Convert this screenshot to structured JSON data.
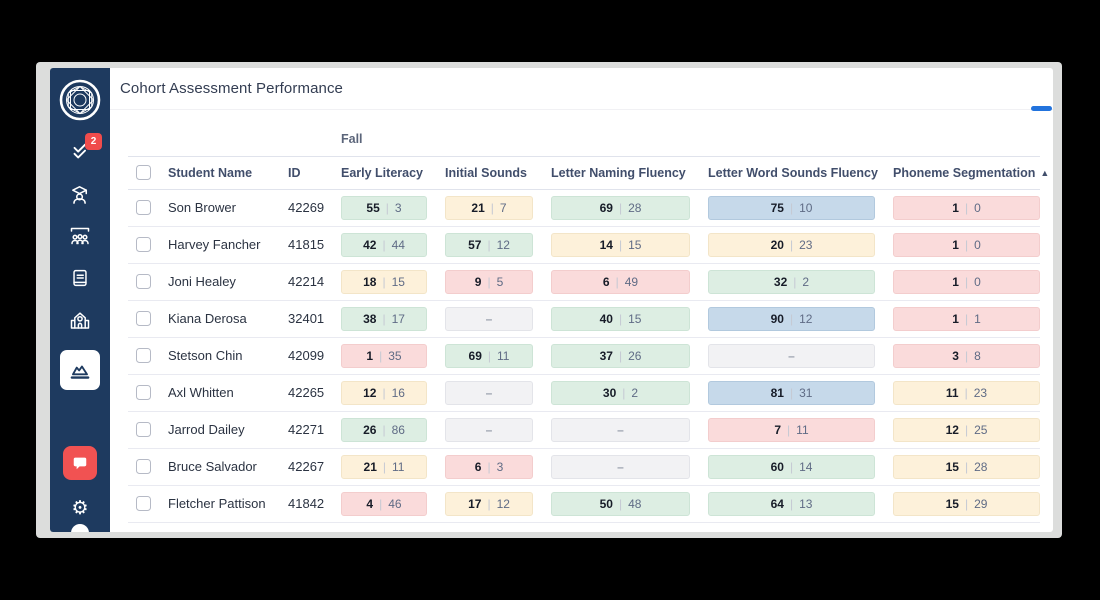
{
  "window": {
    "title": "Cohort Assessment Performance"
  },
  "sidebar": {
    "badge_count": "2",
    "nav": [
      {
        "label": "tasks",
        "icon": "double-check-icon"
      },
      {
        "label": "students",
        "icon": "graduate-icon"
      },
      {
        "label": "groups",
        "icon": "group-icon"
      },
      {
        "label": "curriculum",
        "icon": "book-icon"
      },
      {
        "label": "school",
        "icon": "school-icon"
      },
      {
        "label": "analytics",
        "icon": "area-chart-icon",
        "active": true
      }
    ]
  },
  "colors": {
    "sidebar_navy": "#1e3a5f",
    "accent_blue": "#2273dd",
    "alert_red": "#f04c4c",
    "score_green": "#ddeee3",
    "score_yellow": "#fdf1da",
    "score_pink": "#fadbdb",
    "score_blue": "#c6d9ea",
    "score_gray": "#f2f2f4"
  },
  "table": {
    "season_label": "Fall",
    "columns": [
      "Student Name",
      "ID",
      "Early Literacy",
      "Initial Sounds",
      "Letter Naming Fluency",
      "Letter Word Sounds Fluency",
      "Phoneme Segmentation"
    ],
    "sort": {
      "column": "Phoneme Segmentation",
      "direction": "asc",
      "arrow_up": "▲"
    },
    "value_divider": "|",
    "empty_placeholder": "–",
    "rows": [
      {
        "name": "Son Brower",
        "id": "42269",
        "scores": [
          {
            "v1": "55",
            "v2": "3",
            "color": "green"
          },
          {
            "v1": "21",
            "v2": "7",
            "color": "yellow"
          },
          {
            "v1": "69",
            "v2": "28",
            "color": "green"
          },
          {
            "v1": "75",
            "v2": "10",
            "color": "blue"
          },
          {
            "v1": "1",
            "v2": "0",
            "color": "pink"
          }
        ]
      },
      {
        "name": "Harvey Fancher",
        "id": "41815",
        "scores": [
          {
            "v1": "42",
            "v2": "44",
            "color": "green"
          },
          {
            "v1": "57",
            "v2": "12",
            "color": "green"
          },
          {
            "v1": "14",
            "v2": "15",
            "color": "yellow"
          },
          {
            "v1": "20",
            "v2": "23",
            "color": "yellow"
          },
          {
            "v1": "1",
            "v2": "0",
            "color": "pink"
          }
        ]
      },
      {
        "name": "Joni Healey",
        "id": "42214",
        "scores": [
          {
            "v1": "18",
            "v2": "15",
            "color": "yellow"
          },
          {
            "v1": "9",
            "v2": "5",
            "color": "pink"
          },
          {
            "v1": "6",
            "v2": "49",
            "color": "pink"
          },
          {
            "v1": "32",
            "v2": "2",
            "color": "green"
          },
          {
            "v1": "1",
            "v2": "0",
            "color": "pink"
          }
        ]
      },
      {
        "name": "Kiana Derosa",
        "id": "32401",
        "scores": [
          {
            "v1": "38",
            "v2": "17",
            "color": "green"
          },
          {
            "empty": true,
            "color": "gray"
          },
          {
            "v1": "40",
            "v2": "15",
            "color": "green"
          },
          {
            "v1": "90",
            "v2": "12",
            "color": "blue"
          },
          {
            "v1": "1",
            "v2": "1",
            "color": "pink"
          }
        ]
      },
      {
        "name": "Stetson Chin",
        "id": "42099",
        "scores": [
          {
            "v1": "1",
            "v2": "35",
            "color": "pink"
          },
          {
            "v1": "69",
            "v2": "11",
            "color": "green"
          },
          {
            "v1": "37",
            "v2": "26",
            "color": "green"
          },
          {
            "empty": true,
            "color": "gray"
          },
          {
            "v1": "3",
            "v2": "8",
            "color": "pink"
          }
        ]
      },
      {
        "name": "Axl Whitten",
        "id": "42265",
        "scores": [
          {
            "v1": "12",
            "v2": "16",
            "color": "yellow"
          },
          {
            "empty": true,
            "color": "gray"
          },
          {
            "v1": "30",
            "v2": "2",
            "color": "green"
          },
          {
            "v1": "81",
            "v2": "31",
            "color": "blue"
          },
          {
            "v1": "11",
            "v2": "23",
            "color": "yellow"
          }
        ]
      },
      {
        "name": "Jarrod Dailey",
        "id": "42271",
        "scores": [
          {
            "v1": "26",
            "v2": "86",
            "color": "green"
          },
          {
            "empty": true,
            "color": "gray"
          },
          {
            "empty": true,
            "color": "gray"
          },
          {
            "v1": "7",
            "v2": "11",
            "color": "pink"
          },
          {
            "v1": "12",
            "v2": "25",
            "color": "yellow"
          }
        ]
      },
      {
        "name": "Bruce Salvador",
        "id": "42267",
        "scores": [
          {
            "v1": "21",
            "v2": "11",
            "color": "yellow"
          },
          {
            "v1": "6",
            "v2": "3",
            "color": "pink"
          },
          {
            "empty": true,
            "color": "gray"
          },
          {
            "v1": "60",
            "v2": "14",
            "color": "green"
          },
          {
            "v1": "15",
            "v2": "28",
            "color": "yellow"
          }
        ]
      },
      {
        "name": "Fletcher Pattison",
        "id": "41842",
        "scores": [
          {
            "v1": "4",
            "v2": "46",
            "color": "pink"
          },
          {
            "v1": "17",
            "v2": "12",
            "color": "yellow"
          },
          {
            "v1": "50",
            "v2": "48",
            "color": "green"
          },
          {
            "v1": "64",
            "v2": "13",
            "color": "green"
          },
          {
            "v1": "15",
            "v2": "29",
            "color": "yellow"
          }
        ]
      }
    ]
  }
}
